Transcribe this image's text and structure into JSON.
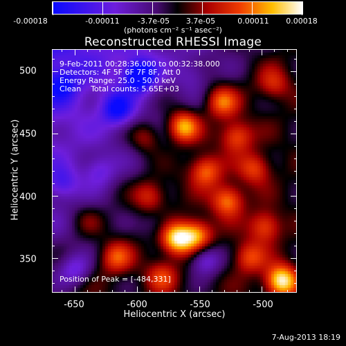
{
  "title": "Reconstructed RHESSI Image",
  "colorbar": {
    "units": "(photons cm⁻² s⁻¹ asec⁻²)",
    "tick_labels": [
      "-0.00018",
      "-0.00011",
      "-3.7e-05",
      "3.7e-05",
      "0.00011",
      "0.00018"
    ],
    "range": [
      -0.00018,
      0.00018
    ]
  },
  "overlay": {
    "time_range": "9-Feb-2011 00:28:36.000 to 00:32:38.000",
    "detectors": "Detectors: 4F 5F 6F 7F 8F, Att 0",
    "energy_range": "Energy Range: 25.0 - 50.0 keV",
    "clean_counts": "Clean    Total counts: 5.65E+03",
    "peak": "Position of Peak = [-484,331]"
  },
  "footer": "7-Aug-2013 18:19",
  "chart_data": {
    "type": "heatmap",
    "title": "Reconstructed RHESSI Image",
    "xlabel": "Heliocentric X (arcsec)",
    "ylabel": "Heliocentric Y (arcsec)",
    "xlim": [
      -668,
      -472
    ],
    "ylim": [
      322,
      518
    ],
    "xticks": [
      -650,
      -600,
      -550,
      -500
    ],
    "yticks": [
      350,
      400,
      450,
      500
    ],
    "colormap": "blue-purple-black-red-yellow-white",
    "value_range": [
      -0.00018,
      0.00018
    ],
    "peak": [
      -484,
      331
    ],
    "hot_spots": [
      {
        "x": -563,
        "y": 456,
        "v": 0.00015
      },
      {
        "x": -568,
        "y": 365,
        "v": 0.00016
      },
      {
        "x": -552,
        "y": 368,
        "v": 0.00013
      },
      {
        "x": -484,
        "y": 331,
        "v": 0.00018
      },
      {
        "x": -527,
        "y": 396,
        "v": 0.00012
      },
      {
        "x": -532,
        "y": 476,
        "v": 0.00011
      },
      {
        "x": -520,
        "y": 448,
        "v": 0.0001
      },
      {
        "x": -497,
        "y": 375,
        "v": 0.0001
      },
      {
        "x": -593,
        "y": 447,
        "v": 7e-05
      },
      {
        "x": -617,
        "y": 350,
        "v": 9e-05
      },
      {
        "x": -590,
        "y": 400,
        "v": 8e-05
      },
      {
        "x": -545,
        "y": 420,
        "v": 0.00011
      },
      {
        "x": -505,
        "y": 422,
        "v": 9e-05
      },
      {
        "x": -640,
        "y": 380,
        "v": 4e-05
      },
      {
        "x": -580,
        "y": 335,
        "v": 8e-05
      },
      {
        "x": -490,
        "y": 490,
        "v": 7e-05
      },
      {
        "x": -510,
        "y": 350,
        "v": 9e-05
      }
    ],
    "cold_spots": [
      {
        "x": -598,
        "y": 497,
        "v": -0.00017
      },
      {
        "x": -660,
        "y": 490,
        "v": -8e-05
      },
      {
        "x": -630,
        "y": 420,
        "v": -6e-05
      },
      {
        "x": -660,
        "y": 410,
        "v": -7e-05
      },
      {
        "x": -545,
        "y": 348,
        "v": -0.0001
      },
      {
        "x": -616,
        "y": 470,
        "v": -0.00012
      },
      {
        "x": -585,
        "y": 377,
        "v": -4e-05
      },
      {
        "x": -555,
        "y": 498,
        "v": -4e-05
      },
      {
        "x": -650,
        "y": 340,
        "v": -8e-05
      }
    ]
  }
}
